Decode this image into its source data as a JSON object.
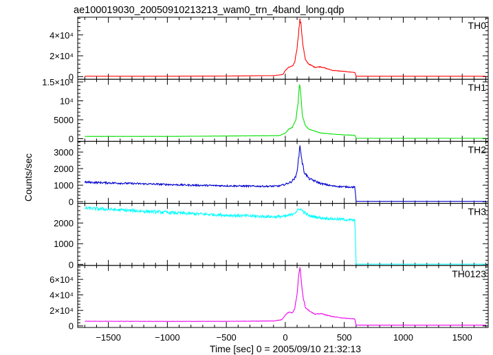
{
  "chart_data": {
    "type": "line",
    "title": "ae100019030_20050910213213_wam0_trn_4band_long.qdp",
    "xlabel": "Time [sec] 0 = 2005/09/10 21:32:13",
    "ylabel": "Counts/sec",
    "xlim": [
      -1760,
      1720
    ],
    "x_ticks": [
      -1500,
      -1000,
      -500,
      0,
      500,
      1000,
      1500
    ],
    "x_tick_labels": [
      "−1500",
      "−1000",
      "−500",
      "0",
      "500",
      "1000",
      "1500"
    ],
    "panels": [
      {
        "name": "TH0",
        "color": "#ff0000",
        "ylim": [
          -2500,
          57000
        ],
        "ticks": [
          0,
          20000,
          40000
        ],
        "tick_labels": [
          "0",
          "2×10⁴",
          "4×10⁴"
        ],
        "x": [
          -1700,
          -1000,
          -500,
          -100,
          -20,
          0,
          30,
          60,
          80,
          100,
          115,
          125,
          135,
          150,
          170,
          200,
          250,
          300,
          400,
          500,
          590,
          600,
          620,
          800,
          1000,
          1500,
          1700
        ],
        "y": [
          400,
          400,
          600,
          1000,
          2000,
          6000,
          9000,
          10000,
          14000,
          28000,
          45000,
          55000,
          48000,
          30000,
          16000,
          12000,
          9000,
          9500,
          6000,
          5000,
          4000,
          400,
          400,
          400,
          400,
          400,
          400
        ]
      },
      {
        "name": "TH1",
        "color": "#00e000",
        "ylim": [
          -700,
          15700
        ],
        "ticks": [
          0,
          5000,
          10000,
          15000
        ],
        "tick_labels": [
          "0",
          "5000",
          "10⁴",
          "1.5×10⁴"
        ],
        "x": [
          -1700,
          -1000,
          -500,
          -50,
          0,
          30,
          60,
          90,
          110,
          120,
          130,
          145,
          170,
          200,
          250,
          300,
          400,
          500,
          590,
          600,
          620,
          1000,
          1700
        ],
        "y": [
          600,
          600,
          700,
          800,
          1500,
          2500,
          3000,
          5000,
          10000,
          14500,
          12000,
          6000,
          3500,
          2500,
          2000,
          1500,
          1200,
          1000,
          900,
          100,
          100,
          100,
          100
        ],
        "noise": 0.03
      },
      {
        "name": "TH2",
        "color": "#0000cd",
        "ylim": [
          -100,
          3650
        ],
        "ticks": [
          0,
          1000,
          2000,
          3000
        ],
        "tick_labels": [
          "0",
          "1000",
          "2000",
          "3000"
        ],
        "x": [
          -1700,
          -1200,
          -800,
          -400,
          -150,
          -50,
          0,
          50,
          90,
          110,
          125,
          140,
          160,
          200,
          300,
          400,
          500,
          590,
          600,
          620,
          1000,
          1700
        ],
        "y": [
          1180,
          1080,
          1000,
          950,
          930,
          950,
          1050,
          1200,
          1500,
          2400,
          3450,
          2500,
          1800,
          1400,
          1100,
          950,
          900,
          880,
          20,
          20,
          20,
          20
        ],
        "noise": 0.05
      },
      {
        "name": "TH3",
        "color": "#00ffff",
        "ylim": [
          -50,
          2950
        ],
        "ticks": [
          0,
          1000,
          2000
        ],
        "tick_labels": [
          "0",
          "1000",
          "2000"
        ],
        "x": [
          -1700,
          -1300,
          -900,
          -500,
          -100,
          0,
          50,
          100,
          125,
          150,
          200,
          300,
          400,
          500,
          590,
          600,
          620,
          1000,
          1700
        ],
        "y": [
          2720,
          2600,
          2480,
          2380,
          2300,
          2320,
          2400,
          2580,
          2700,
          2560,
          2350,
          2250,
          2200,
          2170,
          2130,
          5,
          5,
          5,
          5
        ],
        "noise": 0.03
      },
      {
        "name": "TH0123",
        "color": "#ee00ee",
        "ylim": [
          -2000,
          78000
        ],
        "ticks": [
          0,
          20000,
          40000,
          60000
        ],
        "tick_labels": [
          "0",
          "2×10⁴",
          "4×10⁴",
          "6×10⁴"
        ],
        "x": [
          -1700,
          -1000,
          -500,
          -100,
          -30,
          0,
          30,
          60,
          80,
          100,
          115,
          125,
          135,
          150,
          170,
          200,
          250,
          300,
          400,
          500,
          590,
          600,
          620,
          1000,
          1700
        ],
        "y": [
          6000,
          5800,
          5900,
          6400,
          8000,
          14000,
          18000,
          17000,
          22000,
          42000,
          66000,
          76000,
          60000,
          38000,
          24000,
          20000,
          15000,
          16000,
          12000,
          10000,
          9000,
          1000,
          1000,
          1000,
          1000
        ],
        "noise": 0.03
      }
    ]
  }
}
